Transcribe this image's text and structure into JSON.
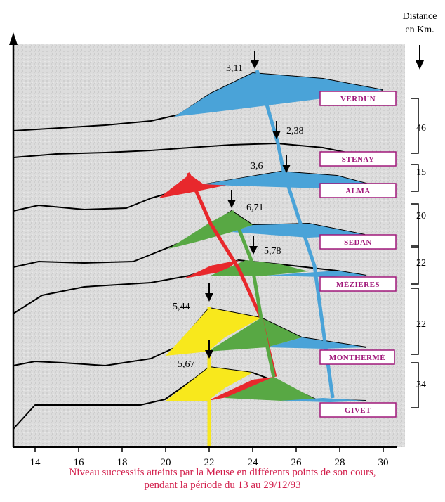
{
  "chart_data": {
    "type": "line",
    "caption_line1": "Niveau successifs atteints par la Meuse en différents points de son cours,",
    "caption_line2": "pendant la période du 13 au 29/12/93",
    "distance_header_line1": "Distance",
    "distance_header_line2": "en Km.",
    "x_ticks": [
      "14",
      "16",
      "18",
      "20",
      "22",
      "24",
      "26",
      "28",
      "30"
    ],
    "x_range": [
      13,
      31
    ],
    "colors": {
      "verdun": "#4aa3d8",
      "alma": "#e8282c",
      "sedan": "#58a844",
      "givet": "#f8e81c",
      "label_border": "#a0187a",
      "caption": "#d21e4b"
    },
    "stations": [
      {
        "name": "VERDUN",
        "peak_label": "3,11",
        "peak_day": 24.2
      },
      {
        "name": "STENAY",
        "peak_label": "2,38",
        "peak_day": 25.1
      },
      {
        "name": "ALMA",
        "peak_label": "3,6",
        "peak_day": 25.5
      },
      {
        "name": "SEDAN",
        "peak_label": "6,71",
        "peak_day": 23.1
      },
      {
        "name": "MÉZIÈRES",
        "peak_label": "5,78",
        "peak_day": 24.0
      },
      {
        "name": "MONTHERMÉ",
        "peak_label": "5,44",
        "peak_day": 22.0
      },
      {
        "name": "GIVET",
        "peak_label": "5,67",
        "peak_day": 22.0
      }
    ],
    "distances": [
      "46",
      "15",
      "20",
      "22",
      "22",
      "34"
    ]
  }
}
